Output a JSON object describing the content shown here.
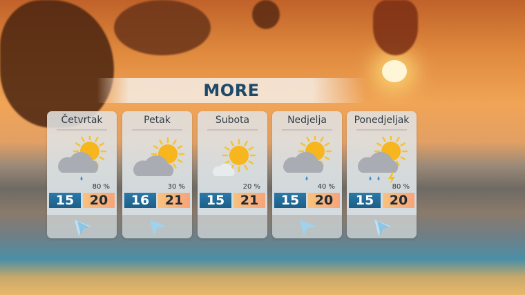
{
  "title": "MORE",
  "days": [
    {
      "name": "Četvrtak",
      "weather_icon": "partly-cloudy-light-rain",
      "rain_chance": "80 %",
      "min": "15",
      "max": "20",
      "wind_icon": "wind-arrow-strong"
    },
    {
      "name": "Petak",
      "weather_icon": "partly-cloudy",
      "rain_chance": "30 %",
      "min": "16",
      "max": "21",
      "wind_icon": "wind-arrow-light"
    },
    {
      "name": "Subota",
      "weather_icon": "mostly-sunny",
      "rain_chance": "20 %",
      "min": "15",
      "max": "21",
      "wind_icon": "none"
    },
    {
      "name": "Nedjelja",
      "weather_icon": "partly-cloudy-light-rain",
      "rain_chance": "40 %",
      "min": "15",
      "max": "20",
      "wind_icon": "wind-arrow-light"
    },
    {
      "name": "Ponedjeljak",
      "weather_icon": "partly-cloudy-thunderstorm",
      "rain_chance": "80 %",
      "min": "15",
      "max": "20",
      "wind_icon": "wind-arrow-strong"
    }
  ],
  "colors": {
    "min_temp": "#1c5e88",
    "max_temp": "#f7b27c",
    "title": "#1e4a6a"
  }
}
